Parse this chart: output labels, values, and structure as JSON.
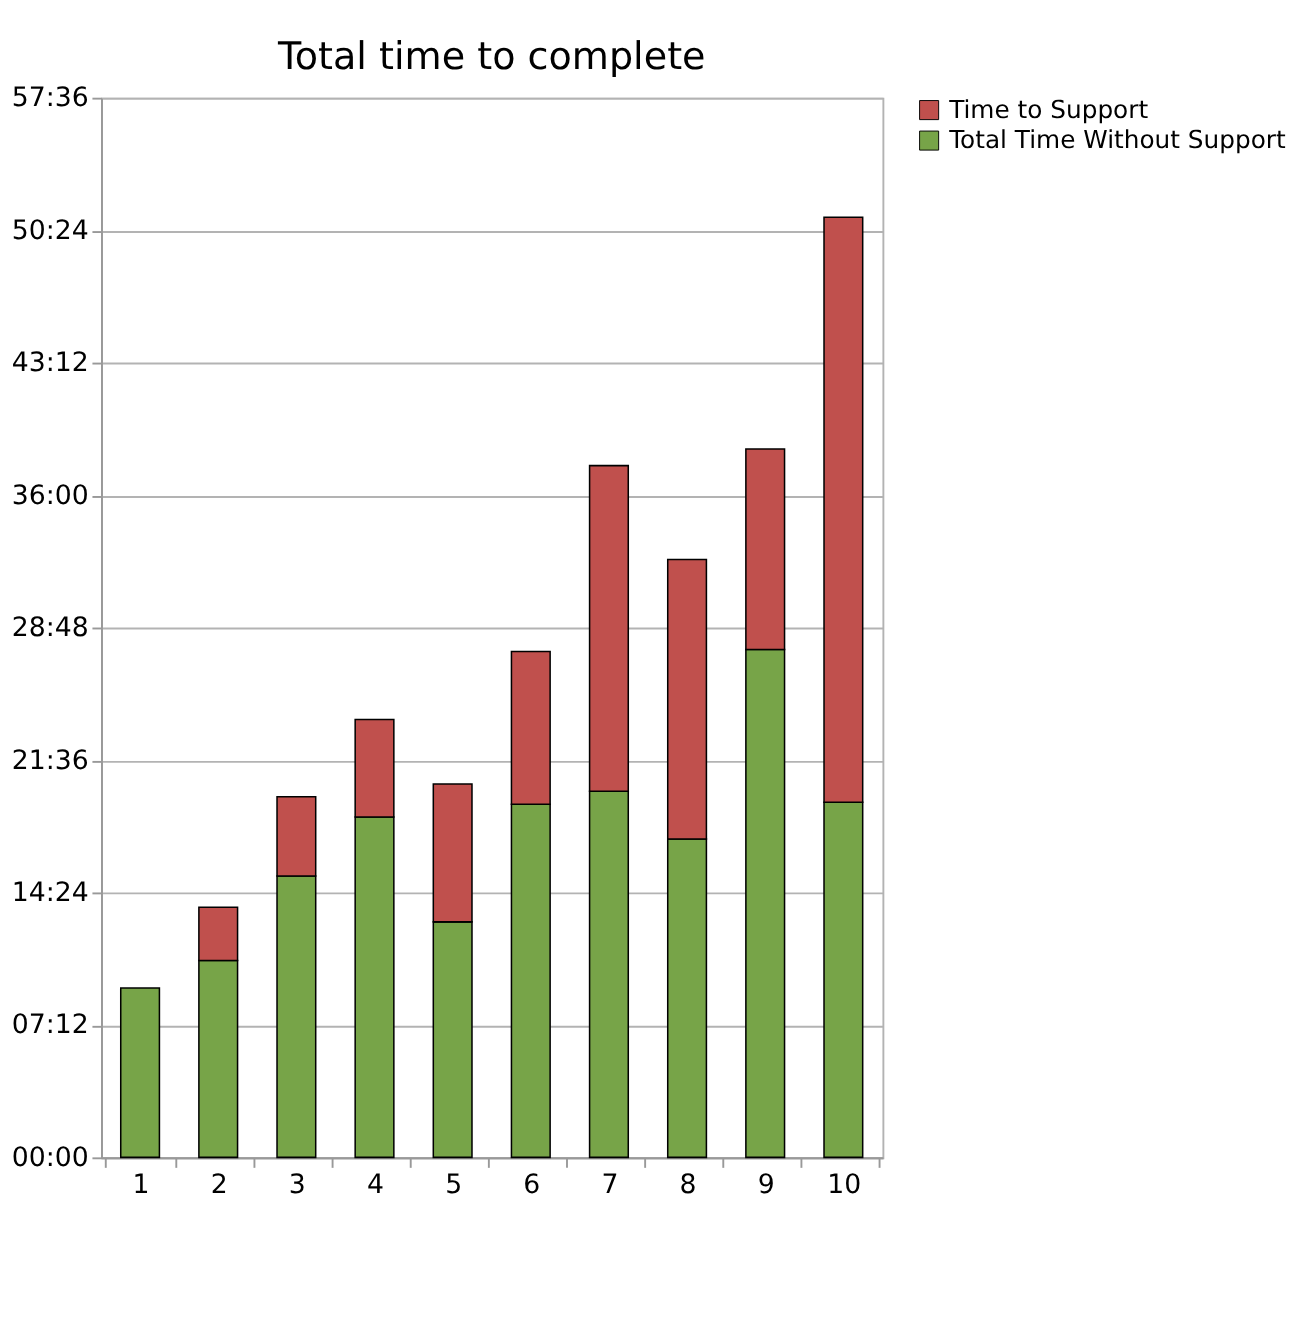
{
  "chart_data": {
    "type": "bar",
    "title": "Total time to complete",
    "stacked": true,
    "categories": [
      "1",
      "2",
      "3",
      "4",
      "5",
      "6",
      "7",
      "8",
      "9",
      "10"
    ],
    "series": [
      {
        "name": "Total Time Without Support",
        "color": "#77a448",
        "values": [
          9.2,
          10.7,
          15.3,
          18.5,
          12.8,
          19.2,
          19.9,
          17.3,
          27.6,
          19.3
        ]
      },
      {
        "name": "Time to Support",
        "color": "#c0504d",
        "values": [
          null,
          2.9,
          4.3,
          5.3,
          7.5,
          8.3,
          17.7,
          15.2,
          10.9,
          31.8
        ]
      }
    ],
    "ylim": [
      0,
      57.6
    ],
    "yticks": [
      {
        "value": 0,
        "label": "00:00"
      },
      {
        "value": 7.2,
        "label": "07:12"
      },
      {
        "value": 14.4,
        "label": "14:24"
      },
      {
        "value": 21.6,
        "label": "21:36"
      },
      {
        "value": 28.8,
        "label": "28:48"
      },
      {
        "value": 36,
        "label": "36:00"
      },
      {
        "value": 43.2,
        "label": "43:12"
      },
      {
        "value": 50.4,
        "label": "50:24"
      },
      {
        "value": 57.6,
        "label": "57:36"
      }
    ],
    "grid": "y",
    "legend": "right"
  }
}
